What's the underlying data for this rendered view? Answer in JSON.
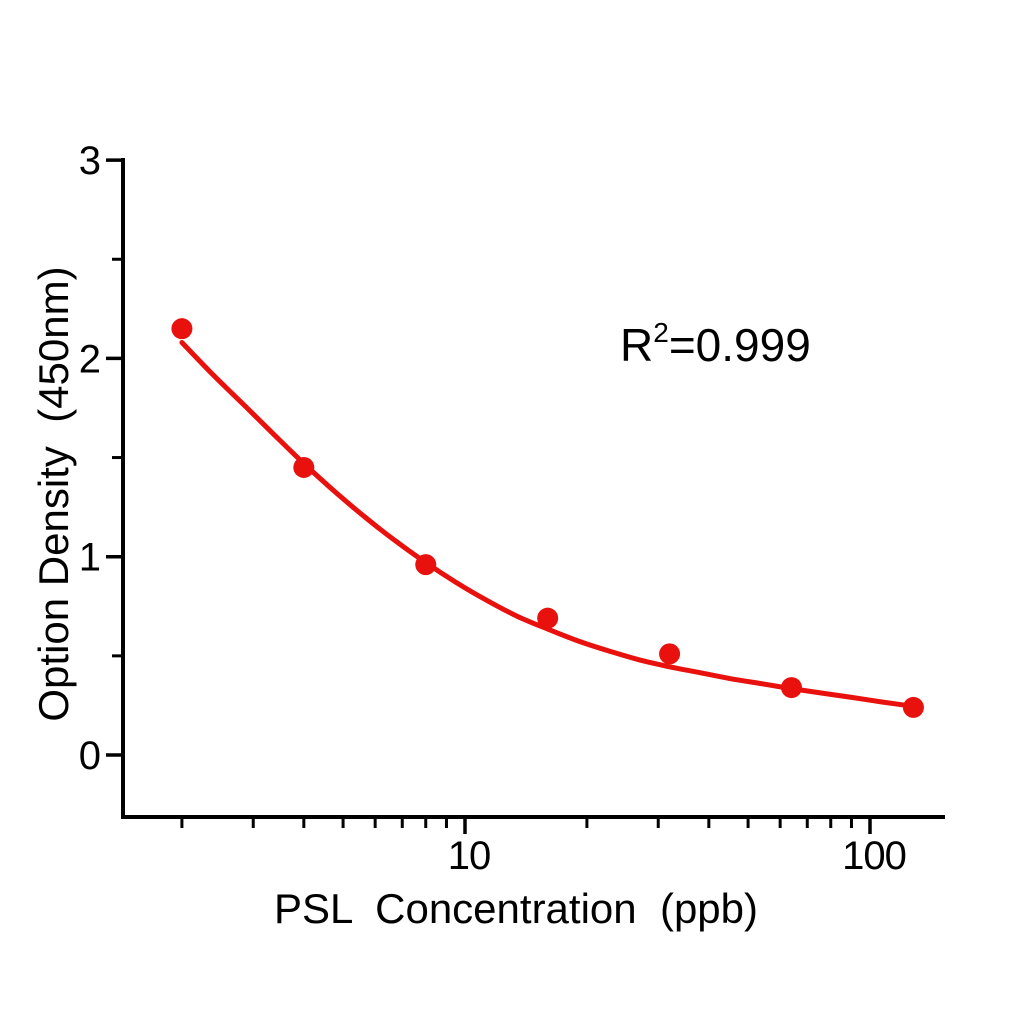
{
  "chart_data": {
    "type": "scatter",
    "x_scale": "log",
    "title": "",
    "xlabel": "PSL  Concentration  (ppb)",
    "ylabel": "Option Density  (450nm)",
    "annotation": {
      "prefix": "R",
      "superscript": "2",
      "suffix": "=0.999"
    },
    "series": [
      {
        "name": "standard-curve-points",
        "x": [
          2,
          4,
          8,
          16,
          32,
          64,
          128
        ],
        "y": [
          2.15,
          1.45,
          0.96,
          0.69,
          0.51,
          0.34,
          0.24
        ],
        "marker_color": "#e8110d",
        "marker_radius_px": 10.5
      }
    ],
    "fit_curve": {
      "name": "4PL-fit-line",
      "color": "#e8110d",
      "stroke_width_px": 5,
      "x": [
        2,
        2.38,
        2.83,
        3.36,
        4,
        4.76,
        5.66,
        6.73,
        8,
        9.51,
        11.31,
        13.45,
        16,
        19.03,
        22.63,
        26.91,
        32,
        38.05,
        45.25,
        53.82,
        64,
        76.11,
        90.51,
        107.63,
        128
      ],
      "y": [
        2.08,
        1.92,
        1.77,
        1.62,
        1.47,
        1.33,
        1.2,
        1.08,
        0.97,
        0.87,
        0.78,
        0.7,
        0.635,
        0.575,
        0.525,
        0.48,
        0.445,
        0.415,
        0.385,
        0.36,
        0.335,
        0.312,
        0.29,
        0.267,
        0.245
      ]
    },
    "axes": {
      "axis_color": "#000000",
      "xlim": [
        1.43,
        155
      ],
      "ylim": [
        -0.31,
        3
      ],
      "grid": false,
      "legend": false,
      "x_ticks_major": [
        {
          "value": 10,
          "label": "10"
        },
        {
          "value": 100,
          "label": "100"
        }
      ],
      "x_ticks_minor": [
        2,
        3,
        4,
        5,
        6,
        7,
        8,
        9,
        20,
        30,
        40,
        50,
        60,
        70,
        80,
        90
      ],
      "y_ticks_major": [
        {
          "value": 0,
          "label": "0"
        },
        {
          "value": 1,
          "label": "1"
        },
        {
          "value": 2,
          "label": "2"
        },
        {
          "value": 3,
          "label": "3"
        }
      ],
      "y_ticks_minor": [
        0.5,
        1.5,
        2.5
      ]
    }
  }
}
